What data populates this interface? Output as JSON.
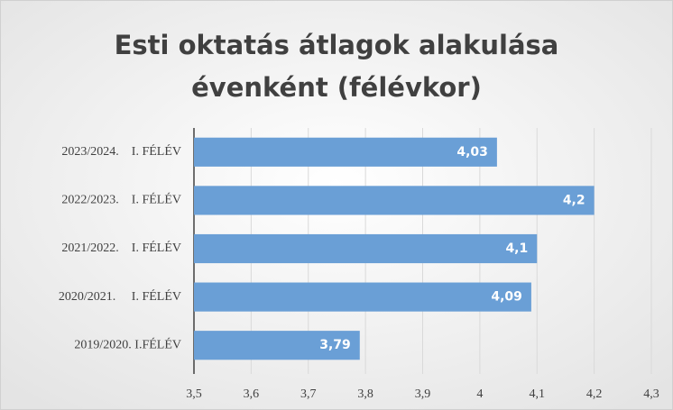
{
  "chart_data": {
    "type": "hbar",
    "title": [
      "Esti oktatás átlagok alakulása",
      "évenként (félévkor)"
    ],
    "categories": [
      "2023/2024.    I. FÉLÉV",
      "2022/2023.    I. FÉLÉV",
      "2021/2022.    I. FÉLÉV",
      "2020/2021.     I. FÉLÉV",
      "2019/2020. I.FÉLÉV"
    ],
    "values": [
      4.03,
      4.2,
      4.1,
      4.09,
      3.79
    ],
    "value_labels": [
      "4,03",
      "4,2",
      "4,1",
      "4,09",
      "3,79"
    ],
    "color": "#6a9fd6",
    "xlim": [
      3.5,
      4.3
    ],
    "xticks": [
      {
        "value": 3.5,
        "label": "3,5"
      },
      {
        "value": 3.6,
        "label": "3,6"
      },
      {
        "value": 3.7,
        "label": "3,7"
      },
      {
        "value": 3.8,
        "label": "3,8"
      },
      {
        "value": 3.9,
        "label": "3,9"
      },
      4,
      {
        "value": 4.1,
        "label": "4,1"
      },
      {
        "value": 4.2,
        "label": "4,2"
      },
      {
        "value": 4.3,
        "label": "4,3"
      }
    ],
    "grid": true
  }
}
